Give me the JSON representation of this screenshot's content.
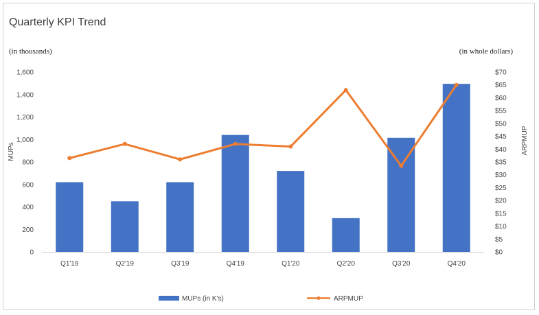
{
  "chart_data": {
    "type": "bar",
    "title": "Quarterly KPI Trend",
    "left_unit": "(in thousands)",
    "right_unit": "(in whole dollars)",
    "ylabel": "MUPs",
    "ylabel_right": "ARPMUP",
    "categories": [
      "Q1'19",
      "Q2'19",
      "Q3'19",
      "Q4'19",
      "Q1'20",
      "Q2'20",
      "Q3'20",
      "Q4'20"
    ],
    "ylim": [
      0,
      1600
    ],
    "yticks": [
      0,
      200,
      400,
      600,
      800,
      1000,
      1200,
      1400,
      1600
    ],
    "ytick_labels": [
      "0",
      "200",
      "400",
      "600",
      "800",
      "1,000",
      "1,200",
      "1,400",
      "1,600"
    ],
    "ylim_right": [
      0,
      70
    ],
    "yticks_right": [
      0,
      5,
      10,
      15,
      20,
      25,
      30,
      35,
      40,
      45,
      50,
      55,
      60,
      65,
      70
    ],
    "ytick_labels_right": [
      "$0",
      "$5",
      "$10",
      "$15",
      "$20",
      "$25",
      "$30",
      "$35",
      "$40",
      "$45",
      "$50",
      "$55",
      "$60",
      "$65",
      "$70"
    ],
    "series": [
      {
        "name": "MUPs (in K's)",
        "type": "bar",
        "axis": "left",
        "color": "#4472C4",
        "values": [
          620,
          450,
          620,
          1040,
          720,
          300,
          1015,
          1495
        ]
      },
      {
        "name": "ARPMUP",
        "type": "line",
        "axis": "right",
        "color": "#ED7D31",
        "values": [
          36.5,
          42,
          36,
          42,
          41,
          63,
          33.5,
          65
        ]
      }
    ],
    "grid": false,
    "legend": "bottom"
  }
}
